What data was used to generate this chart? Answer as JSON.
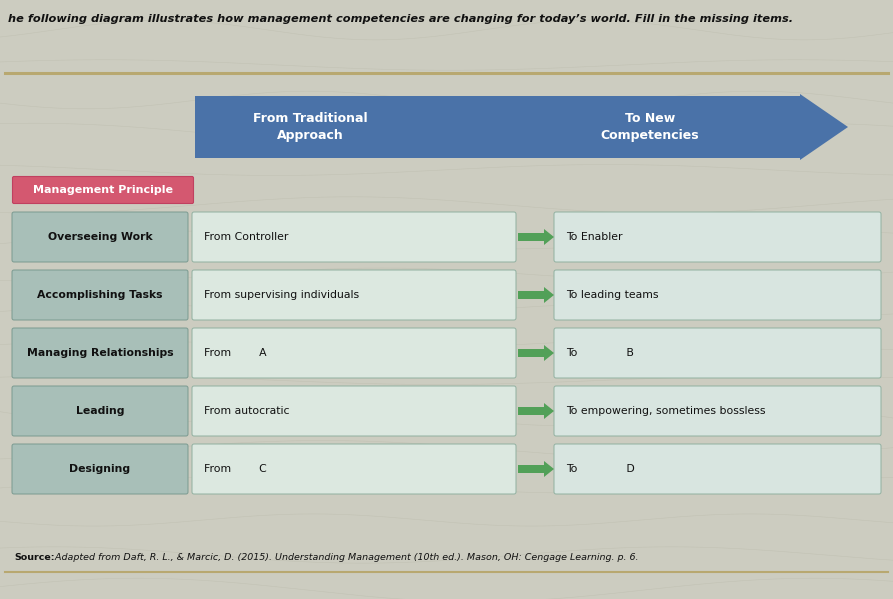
{
  "title": "he following diagram illustrates how management competencies are changing for today’s world. Fill in the missing items.",
  "background_color": "#ccccc0",
  "arrow_color": "#4a72a8",
  "arrow_text_left": "From Traditional\nApproach",
  "arrow_text_right": "To New\nCompetencies",
  "header_label_bg": "#d45870",
  "header_label_text": "Management Principle",
  "rows": [
    {
      "principle": "Overseeing Work",
      "from_text": "From Controller",
      "to_text": "To Enabler"
    },
    {
      "principle": "Accomplishing Tasks",
      "from_text": "From supervising individuals",
      "to_text": "To leading teams"
    },
    {
      "principle": "Managing Relationships",
      "from_text": "From        A",
      "to_text": "To              B"
    },
    {
      "principle": "Leading",
      "from_text": "From autocratic",
      "to_text": "To empowering, sometimes bossless"
    },
    {
      "principle": "Designing",
      "from_text": "From        C",
      "to_text": "To              D"
    }
  ],
  "source_bold": "Source:",
  "source_text": " Adapted from Daft, R. L., & Marcic, D. (2015). Understanding Management (10th ed.). Mason, OH: Cengage Learning. p. 6.",
  "principle_box_color": "#a8bfb8",
  "from_box_color": "#dce8e0",
  "to_box_color": "#d8e5e0",
  "arrow_green": "#52a058",
  "stripe_color": "#b8a870"
}
